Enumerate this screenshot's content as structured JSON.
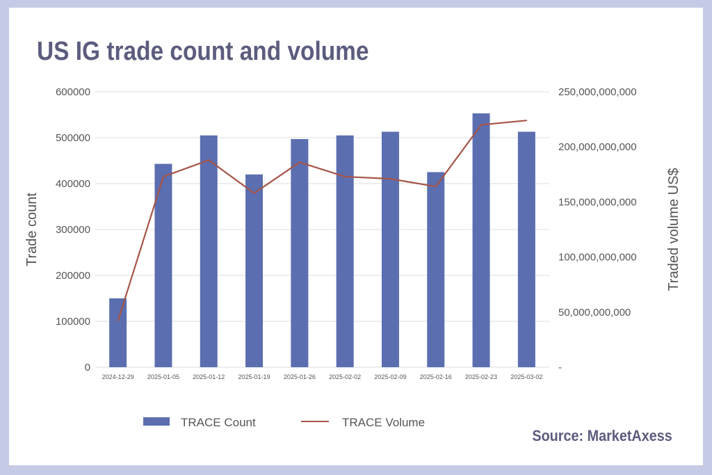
{
  "title": "US IG trade count and volume",
  "source": "Source: MarketAxess",
  "colors": {
    "background": "#c5cbe6",
    "title": "#5b5c7e",
    "bar": "#5b6eb0",
    "line": "#a65448",
    "grid": "#dcdcdc"
  },
  "chart_data": {
    "type": "bar",
    "categories": [
      "2024-12-29",
      "2025-01-05",
      "2025-01-12",
      "2025-01-19",
      "2025-01-26",
      "2025-02-02",
      "2025-02-09",
      "2025-02-16",
      "2025-02-23",
      "2025-03-02"
    ],
    "series": [
      {
        "name": "TRACE Count",
        "type": "bar",
        "axis": "left",
        "values": [
          150000,
          443000,
          505000,
          420000,
          497000,
          505000,
          513000,
          425000,
          553000,
          513000
        ]
      },
      {
        "name": "TRACE Volume",
        "type": "line",
        "axis": "right",
        "values": [
          42000000000,
          173000000000,
          188000000000,
          158000000000,
          186000000000,
          173000000000,
          171000000000,
          164000000000,
          220000000000,
          224000000000
        ]
      }
    ],
    "ylabel": "Trade count",
    "y2label": "Traded volume US$",
    "ylim": [
      0,
      600000
    ],
    "y2lim": [
      0,
      250000000000
    ],
    "yticks": [
      "0",
      "100000",
      "200000",
      "300000",
      "400000",
      "500000",
      "600000"
    ],
    "y2ticks": [
      "-",
      "50,000,000,000",
      "100,000,000,000",
      "150,000,000,000",
      "200,000,000,000",
      "250,000,000,000"
    ],
    "grid": true,
    "legend": "bottom"
  }
}
